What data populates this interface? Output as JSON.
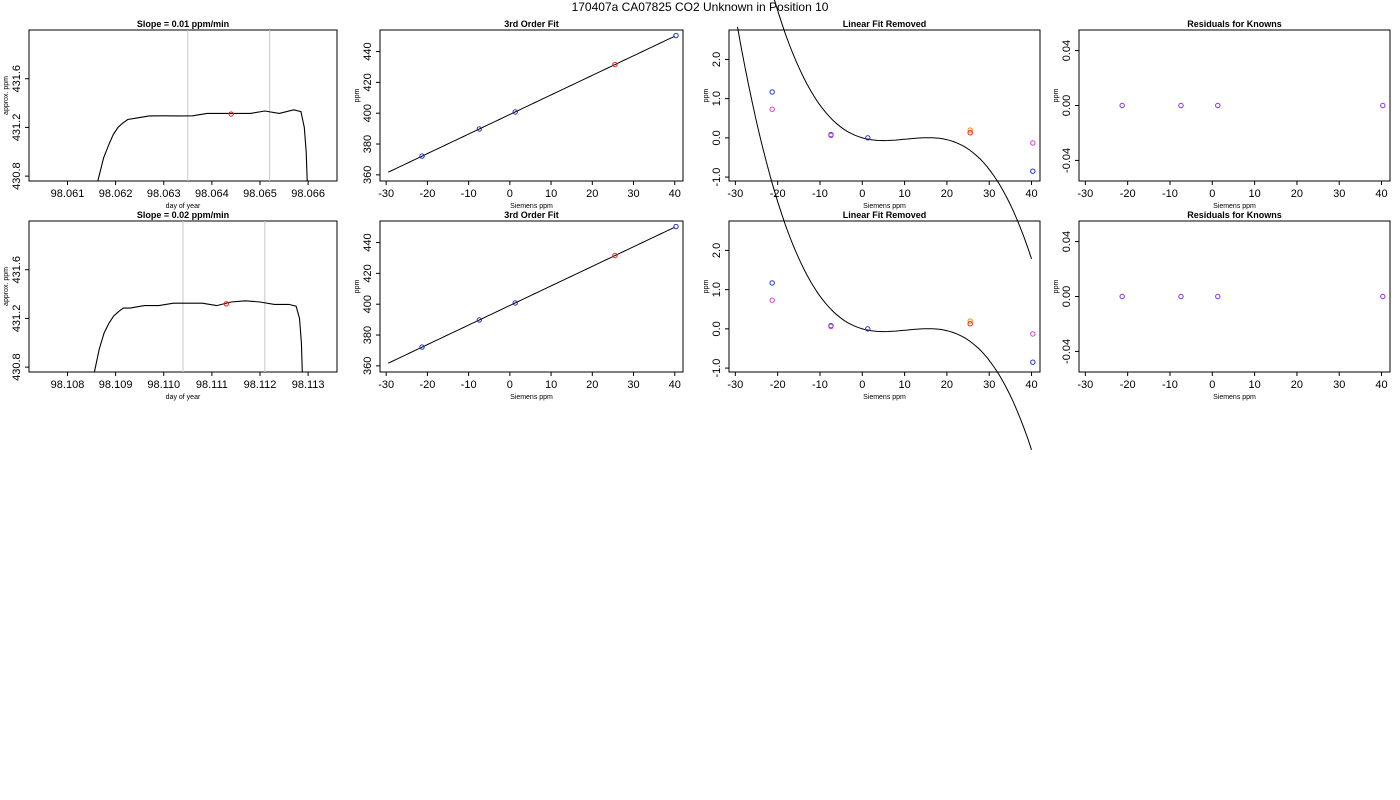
{
  "page_title": "170407a     CA07825   CO2 Unknown in Position  10",
  "colors": {
    "trace": "#000000",
    "window_line": "#c8c8c8",
    "unknown_point": "#e8231f",
    "known_point": "#2233cc",
    "residual_point": "#8a2be2",
    "linear_fit_point": "#cc44cc",
    "unknown_residual": "#ff8c00"
  },
  "chart_data": [
    {
      "type": "line",
      "panel": "timeseries",
      "title": "Slope =  0.01  ppm/min",
      "xlabel": "day of year",
      "ylabel": "approx. ppm",
      "xlim": [
        98.0602,
        98.0666
      ],
      "ylim": [
        430.76,
        432.0
      ],
      "xticks": [
        98.061,
        98.062,
        98.063,
        98.064,
        98.065,
        98.066
      ],
      "xtick_labels": [
        "98.061",
        "98.062",
        "98.063",
        "98.064",
        "98.065",
        "98.066"
      ],
      "yticks": [
        430.8,
        431.2,
        431.6
      ],
      "ytick_labels": [
        "430.8",
        "431.2",
        "431.6"
      ],
      "window_lines_x": [
        98.0635,
        98.0652
      ],
      "marker": {
        "x": 98.0644,
        "y": 431.31
      },
      "series": [
        {
          "x": [
            98.06163,
            98.06175,
            98.06185,
            98.06195,
            98.06205,
            98.06215,
            98.06225,
            98.0624,
            98.0627,
            98.063,
            98.0633,
            98.0636,
            98.0639,
            98.0642,
            98.0645,
            98.0648,
            98.0651,
            98.0654,
            98.0657,
            98.06585,
            98.06592,
            98.06596,
            98.06598
          ],
          "y": [
            430.76,
            430.95,
            431.05,
            431.14,
            431.2,
            431.24,
            431.26,
            431.28,
            431.29,
            431.3,
            431.29,
            431.3,
            431.31,
            431.32,
            431.31,
            431.32,
            431.33,
            431.32,
            431.34,
            431.33,
            431.2,
            431.0,
            430.76
          ]
        }
      ]
    },
    {
      "type": "scatter",
      "panel": "fit",
      "title": "3rd Order Fit",
      "xlabel": "Siemens ppm",
      "ylabel": "ppm",
      "xlim": [
        -31.5,
        42
      ],
      "ylim": [
        356,
        454
      ],
      "xticks": [
        -30,
        -20,
        -10,
        0,
        10,
        20,
        30,
        40
      ],
      "xtick_labels": [
        "-30",
        "-20",
        "-10",
        "0",
        "10",
        "20",
        "30",
        "40"
      ],
      "yticks": [
        360,
        380,
        400,
        420,
        440
      ],
      "ytick_labels": [
        "360",
        "380",
        "400",
        "420",
        "440"
      ],
      "curve": {
        "x0": -29.5,
        "x1": 40,
        "coef": [
          399.2,
          1.27,
          0,
          0
        ]
      },
      "series": [
        {
          "role": "known",
          "x": [
            -21.3,
            -7.4,
            1.3,
            40.3
          ],
          "y": [
            372.2,
            389.8,
            400.8,
            450.4
          ]
        },
        {
          "role": "unknown",
          "x": [
            25.5
          ],
          "y": [
            431.6
          ]
        }
      ]
    },
    {
      "type": "scatter",
      "panel": "residual_fit",
      "title": "Linear Fit Removed",
      "xlabel": "Siemens ppm",
      "ylabel": "ppm",
      "xlim": [
        -31.5,
        42
      ],
      "ylim": [
        -1.1,
        2.75
      ],
      "xticks": [
        -30,
        -20,
        -10,
        0,
        10,
        20,
        30,
        40
      ],
      "xtick_labels": [
        "-30",
        "-20",
        "-10",
        "0",
        "10",
        "20",
        "30",
        "40"
      ],
      "yticks": [
        -1.0,
        0.0,
        1.0,
        2.0
      ],
      "ytick_labels": [
        "-1.0",
        "0.0",
        "1.0",
        "2.0"
      ],
      "curve": {
        "x0": -29.5,
        "x1": 40,
        "coef": [
          0,
          -0.0307,
          0.004,
          -0.000129
        ]
      },
      "series": [
        {
          "role": "known",
          "x": [
            -21.3,
            -7.4,
            1.3,
            40.3
          ],
          "y": [
            1.17,
            0.08,
            0.0,
            -0.85
          ]
        },
        {
          "role": "linear",
          "x": [
            -21.3,
            -7.4,
            40.3
          ],
          "y": [
            0.73,
            0.06,
            -0.13
          ]
        },
        {
          "role": "unknown",
          "x": [
            25.5,
            25.5
          ],
          "y": [
            0.2,
            0.13
          ]
        }
      ]
    },
    {
      "type": "scatter",
      "panel": "residuals",
      "title": "Residuals for Knowns",
      "xlabel": "Siemens ppm",
      "ylabel": "ppm",
      "xlim": [
        -31.5,
        42
      ],
      "ylim": [
        -0.055,
        0.055
      ],
      "xticks": [
        -30,
        -20,
        -10,
        0,
        10,
        20,
        30,
        40
      ],
      "xtick_labels": [
        "-30",
        "-20",
        "-10",
        "0",
        "10",
        "20",
        "30",
        "40"
      ],
      "yticks": [
        -0.04,
        0.0,
        0.04
      ],
      "ytick_labels": [
        "-0.04",
        "0.00",
        "0.04"
      ],
      "series": [
        {
          "role": "residual",
          "x": [
            -21.3,
            -7.4,
            1.3,
            40.3
          ],
          "y": [
            0,
            0,
            0,
            0
          ]
        }
      ]
    },
    {
      "type": "line",
      "panel": "timeseries",
      "title": "Slope =  0.02  ppm/min",
      "xlabel": "day of year",
      "ylabel": "approx. ppm",
      "xlim": [
        98.1072,
        98.1136
      ],
      "ylim": [
        430.76,
        432.0
      ],
      "xticks": [
        98.108,
        98.109,
        98.11,
        98.111,
        98.112,
        98.113
      ],
      "xtick_labels": [
        "98.108",
        "98.109",
        "98.110",
        "98.111",
        "98.112",
        "98.113"
      ],
      "yticks": [
        430.8,
        431.2,
        431.6
      ],
      "ytick_labels": [
        "430.8",
        "431.2",
        "431.6"
      ],
      "window_lines_x": [
        98.1104,
        98.1121
      ],
      "marker": {
        "x": 98.1113,
        "y": 431.32
      },
      "series": [
        {
          "x": [
            98.10856,
            98.10866,
            98.10876,
            98.10886,
            98.10896,
            98.10906,
            98.10916,
            98.1093,
            98.1096,
            98.1099,
            98.1102,
            98.1105,
            98.1108,
            98.1111,
            98.1114,
            98.1117,
            98.112,
            98.1123,
            98.1126,
            98.11275,
            98.11282,
            98.11286,
            98.11288
          ],
          "y": [
            430.76,
            430.95,
            431.08,
            431.16,
            431.22,
            431.26,
            431.28,
            431.29,
            431.3,
            431.31,
            431.32,
            431.33,
            431.32,
            431.31,
            431.33,
            431.35,
            431.33,
            431.32,
            431.31,
            431.3,
            431.2,
            431.0,
            430.76
          ]
        }
      ]
    },
    {
      "type": "scatter",
      "panel": "fit",
      "title": "3rd Order Fit",
      "xlabel": "Siemens ppm",
      "ylabel": "ppm",
      "xlim": [
        -31.5,
        42
      ],
      "ylim": [
        356,
        454
      ],
      "xticks": [
        -30,
        -20,
        -10,
        0,
        10,
        20,
        30,
        40
      ],
      "xtick_labels": [
        "-30",
        "-20",
        "-10",
        "0",
        "10",
        "20",
        "30",
        "40"
      ],
      "yticks": [
        360,
        380,
        400,
        420,
        440
      ],
      "ytick_labels": [
        "360",
        "380",
        "400",
        "420",
        "440"
      ],
      "curve": {
        "x0": -29.5,
        "x1": 40,
        "coef": [
          399.2,
          1.27,
          0,
          0
        ]
      },
      "series": [
        {
          "role": "known",
          "x": [
            -21.3,
            -7.4,
            1.3,
            40.3
          ],
          "y": [
            372.2,
            389.8,
            400.8,
            450.4
          ]
        },
        {
          "role": "unknown",
          "x": [
            25.5
          ],
          "y": [
            431.6
          ]
        }
      ]
    },
    {
      "type": "scatter",
      "panel": "residual_fit",
      "title": "Linear Fit Removed",
      "xlabel": "Siemens ppm",
      "ylabel": "ppm",
      "xlim": [
        -31.5,
        42
      ],
      "ylim": [
        -1.1,
        2.75
      ],
      "xticks": [
        -30,
        -20,
        -10,
        0,
        10,
        20,
        30,
        40
      ],
      "xtick_labels": [
        "-30",
        "-20",
        "-10",
        "0",
        "10",
        "20",
        "30",
        "40"
      ],
      "yticks": [
        -1.0,
        0.0,
        1.0,
        2.0
      ],
      "ytick_labels": [
        "-1.0",
        "0.0",
        "1.0",
        "2.0"
      ],
      "curve": {
        "x0": -29.5,
        "x1": 40,
        "coef": [
          0,
          -0.0307,
          0.004,
          -0.000129
        ]
      },
      "series": [
        {
          "role": "known",
          "x": [
            -21.3,
            -7.4,
            1.3,
            40.3
          ],
          "y": [
            1.17,
            0.08,
            0.0,
            -0.85
          ]
        },
        {
          "role": "linear",
          "x": [
            -21.3,
            -7.4,
            40.3
          ],
          "y": [
            0.73,
            0.06,
            -0.13
          ]
        },
        {
          "role": "unknown",
          "x": [
            25.5,
            25.5
          ],
          "y": [
            0.2,
            0.13
          ]
        }
      ]
    },
    {
      "type": "scatter",
      "panel": "residuals",
      "title": "Residuals for Knowns",
      "xlabel": "Siemens ppm",
      "ylabel": "ppm",
      "xlim": [
        -31.5,
        42
      ],
      "ylim": [
        -0.055,
        0.055
      ],
      "xticks": [
        -30,
        -20,
        -10,
        0,
        10,
        20,
        30,
        40
      ],
      "xtick_labels": [
        "-30",
        "-20",
        "-10",
        "0",
        "10",
        "20",
        "30",
        "40"
      ],
      "yticks": [
        -0.04,
        0.0,
        0.04
      ],
      "ytick_labels": [
        "-0.04",
        "0.00",
        "0.04"
      ],
      "series": [
        {
          "role": "residual",
          "x": [
            -21.3,
            -7.4,
            1.3,
            40.3
          ],
          "y": [
            0,
            0,
            0,
            0
          ]
        }
      ]
    }
  ]
}
